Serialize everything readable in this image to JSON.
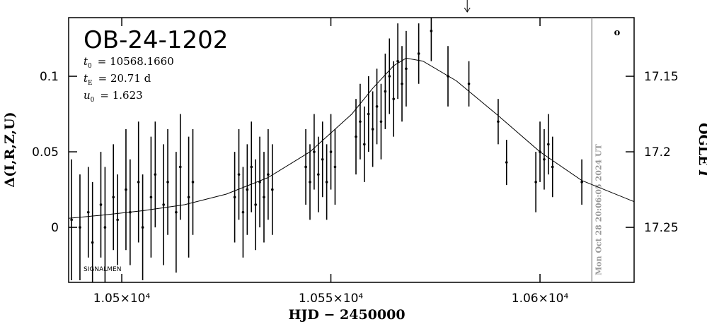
{
  "chart_data": {
    "type": "scatter",
    "title": "OB-24-1202",
    "params": [
      {
        "symbol": "t",
        "sub": "0",
        "text": "= 10568.1660"
      },
      {
        "symbol": "t",
        "sub": "E",
        "text": "= 20.71 d"
      },
      {
        "symbol": "u",
        "sub": "0",
        "text": "= 1.623"
      }
    ],
    "x_label": "HJD − 2450000",
    "y_label": "Δ(I,R,Z,U)",
    "y2_label": {
      "text": "OGLE",
      "italic": "I"
    },
    "timestamp": "Mon Oct 28 20:06:05 2024 UT",
    "footer": "SIGNALMEN",
    "corner_mark": "o",
    "now_x": 10612.4,
    "arrow_x": 10582.6,
    "xlim": [
      10487.3,
      10622.5
    ],
    "xticks": [
      {
        "value": 10500,
        "label": "1.05×10⁴"
      },
      {
        "value": 10550,
        "label": "1.055×10⁴"
      },
      {
        "value": 10600,
        "label": "1.06×10⁴"
      }
    ],
    "ylim": [
      -0.0364,
      0.1388
    ],
    "yticks": [
      0,
      0.05,
      0.1
    ],
    "y2lim": [
      17.2864,
      17.1112
    ],
    "y2ticks": [
      17.15,
      17.2,
      17.25
    ],
    "series": [
      {
        "color": "#000000",
        "x": [
          10488,
          10490,
          10492,
          10493,
          10495,
          10496,
          10498,
          10499,
          10501,
          10502,
          10504,
          10505,
          10507,
          10508,
          10510,
          10511,
          10513,
          10514,
          10516,
          10517,
          10527,
          10528,
          10529,
          10530,
          10531,
          10532,
          10533,
          10534,
          10535,
          10536,
          10544,
          10545,
          10546,
          10547,
          10548,
          10549,
          10550,
          10551,
          10556,
          10557,
          10558,
          10559,
          10560,
          10561,
          10562,
          10563,
          10564,
          10565,
          10566,
          10567,
          10568,
          10571,
          10574,
          10578,
          10583,
          10590,
          10592,
          10599,
          10600,
          10601,
          10602,
          10603,
          10610
        ],
        "values": [
          0.005,
          0.0,
          0.01,
          -0.01,
          0.015,
          0.0,
          0.02,
          0.005,
          0.025,
          0.01,
          0.03,
          0.0,
          0.02,
          0.035,
          0.015,
          0.03,
          0.01,
          0.04,
          0.02,
          0.03,
          0.02,
          0.035,
          0.01,
          0.025,
          0.04,
          0.015,
          0.03,
          0.02,
          0.035,
          0.025,
          0.04,
          0.03,
          0.05,
          0.035,
          0.045,
          0.03,
          0.05,
          0.04,
          0.06,
          0.07,
          0.055,
          0.075,
          0.065,
          0.08,
          0.07,
          0.09,
          0.1,
          0.085,
          0.11,
          0.095,
          0.105,
          0.115,
          0.13,
          0.1,
          0.095,
          0.07,
          0.043,
          0.03,
          0.05,
          0.045,
          0.055,
          0.04,
          0.03
        ],
        "errors": [
          0.04,
          0.035,
          0.03,
          0.04,
          0.035,
          0.04,
          0.035,
          0.03,
          0.04,
          0.035,
          0.04,
          0.035,
          0.04,
          0.035,
          0.04,
          0.035,
          0.04,
          0.035,
          0.04,
          0.035,
          0.03,
          0.03,
          0.03,
          0.03,
          0.03,
          0.03,
          0.03,
          0.03,
          0.03,
          0.03,
          0.025,
          0.025,
          0.025,
          0.025,
          0.025,
          0.025,
          0.025,
          0.025,
          0.025,
          0.025,
          0.025,
          0.025,
          0.025,
          0.025,
          0.025,
          0.025,
          0.025,
          0.025,
          0.025,
          0.025,
          0.025,
          0.02,
          0.02,
          0.02,
          0.015,
          0.015,
          0.015,
          0.02,
          0.02,
          0.02,
          0.02,
          0.02,
          0.015
        ]
      }
    ],
    "model": {
      "color": "#000000",
      "x": [
        10487.3,
        10495,
        10505,
        10515,
        10525,
        10535,
        10545,
        10555,
        10560,
        10565,
        10568,
        10572,
        10580,
        10590,
        10600,
        10610,
        10622.5
      ],
      "values": [
        0.006,
        0.008,
        0.011,
        0.015,
        0.022,
        0.033,
        0.05,
        0.075,
        0.092,
        0.107,
        0.112,
        0.11,
        0.097,
        0.074,
        0.05,
        0.031,
        0.017
      ]
    }
  }
}
